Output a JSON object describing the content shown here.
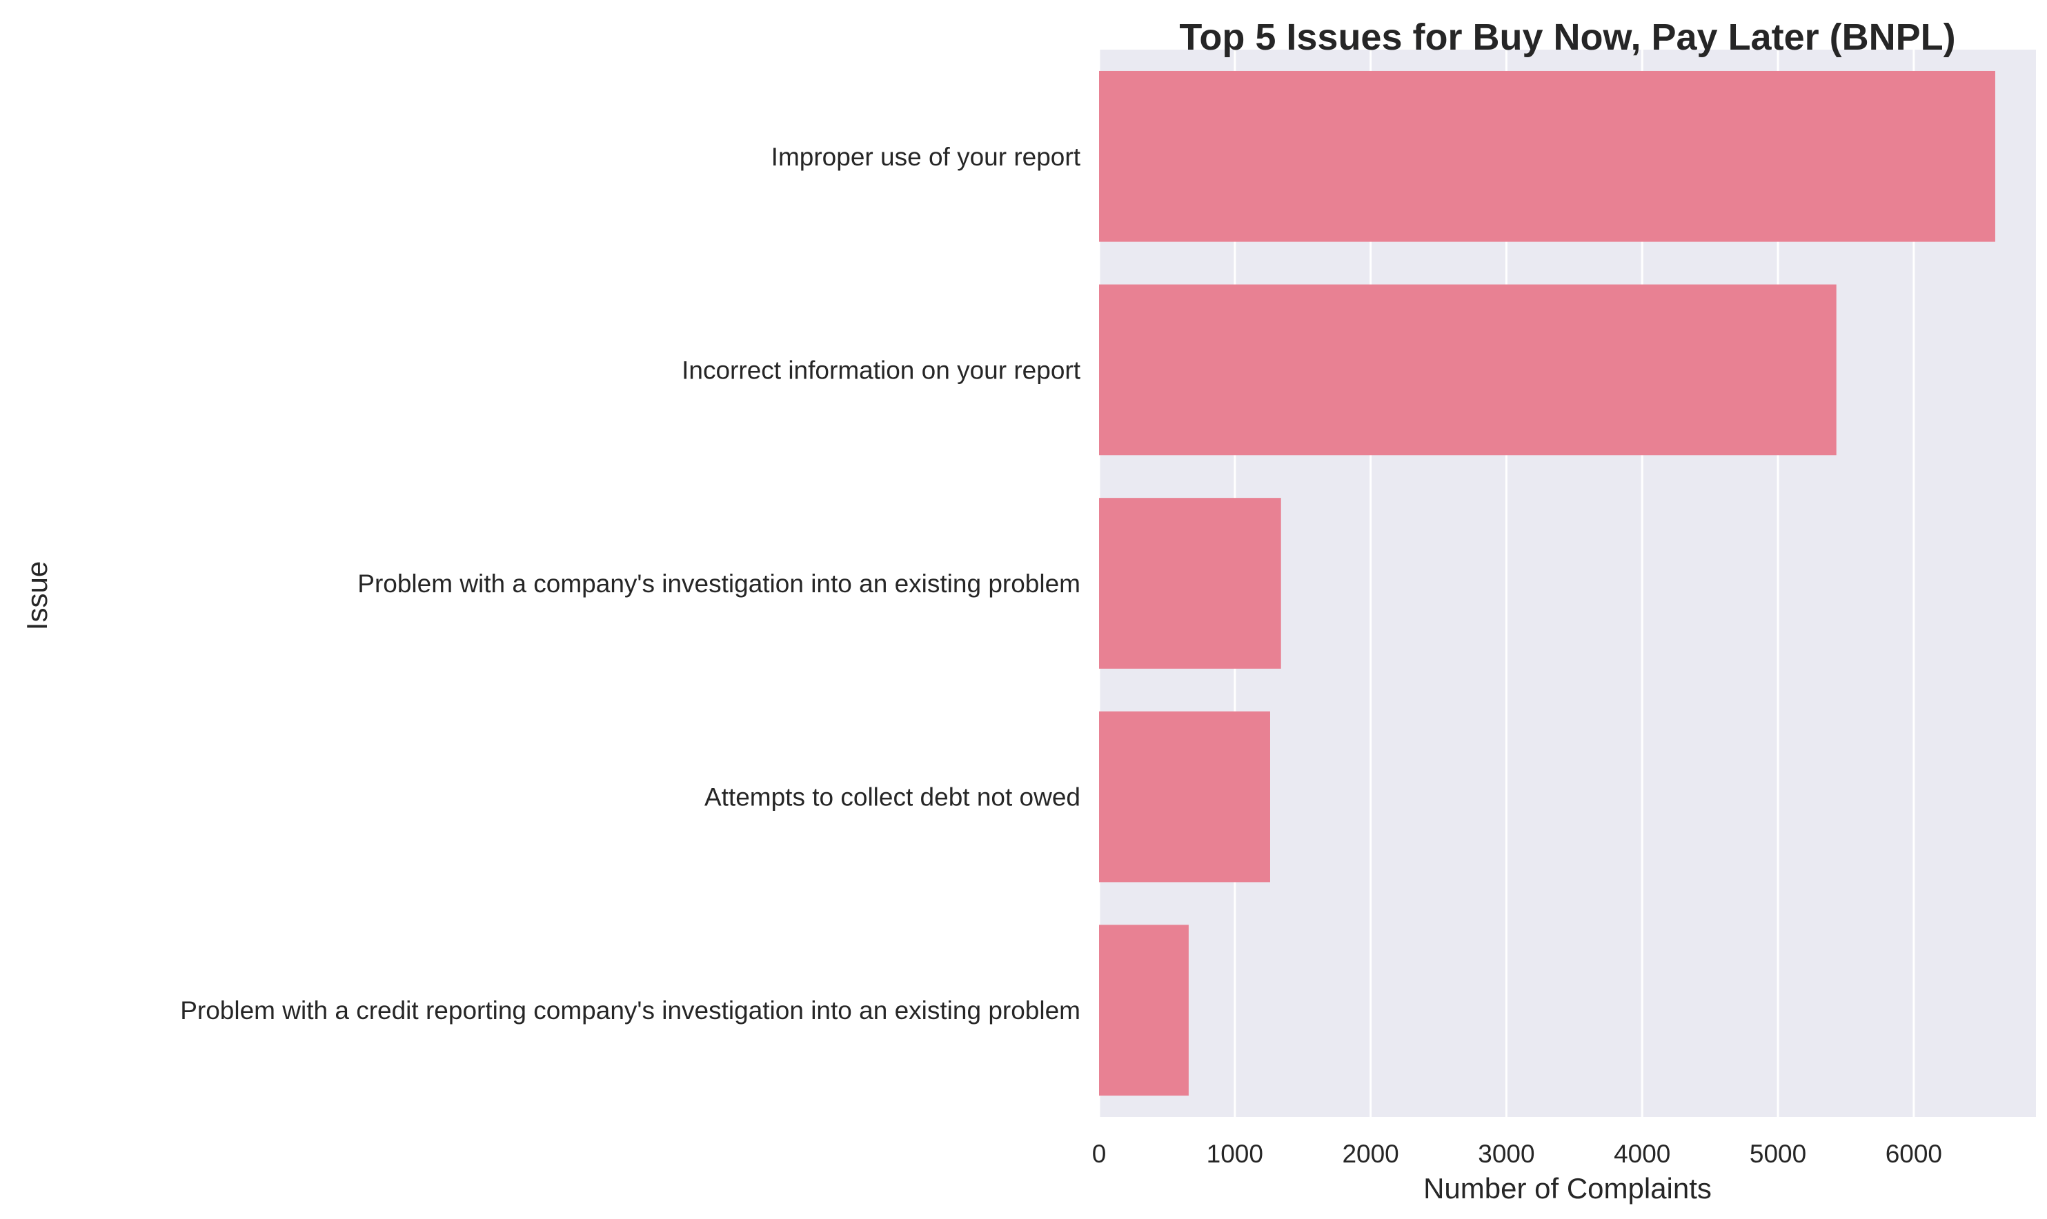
{
  "chart_data": {
    "type": "bar",
    "orientation": "horizontal",
    "title": "Top 5 Issues for Buy Now, Pay Later (BNPL)",
    "xlabel": "Number of Complaints",
    "ylabel": "Issue",
    "categories": [
      "Improper use of your report",
      "Incorrect information on your report",
      "Problem with a company's investigation into an existing problem",
      "Attempts to collect debt not owed",
      "Problem with a credit reporting company's investigation into an existing problem"
    ],
    "values": [
      6600,
      5430,
      1340,
      1260,
      660
    ],
    "xlim": [
      0,
      6900
    ],
    "xticks": [
      0,
      1000,
      2000,
      3000,
      4000,
      5000,
      6000
    ],
    "grid": true,
    "legend": "none",
    "colors": {
      "bar": "#e88193",
      "plot_background": "#eaeaf2",
      "grid": "#ffffff",
      "text": "#262626"
    }
  }
}
